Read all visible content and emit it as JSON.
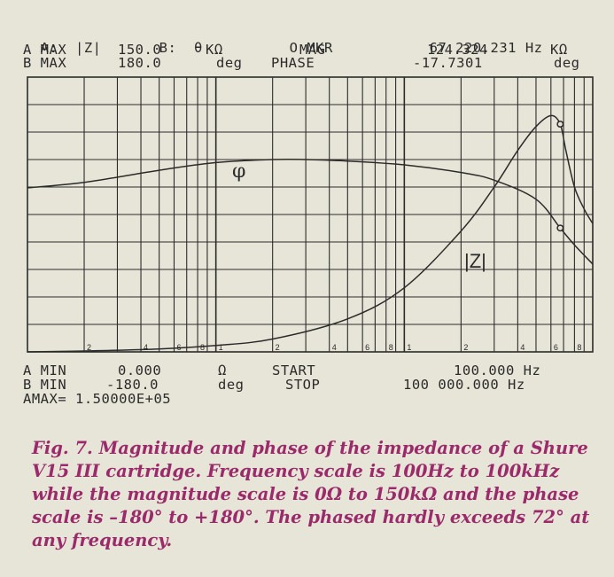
{
  "header": {
    "a_trace": "A:  |Z|",
    "b_trace": "B:  θ",
    "mkr_label": "O MKR",
    "mkr_freq": "67 220.231 Hz",
    "a_max_label": "A MAX",
    "a_max_value": "150.0",
    "a_max_unit": "KΩ",
    "mag_label": "MAG",
    "mag_value": "124.324",
    "mag_unit": "KΩ",
    "b_max_label": "B MAX",
    "b_max_value": "180.0",
    "b_max_unit": "deg",
    "phase_label": "PHASE",
    "phase_value": "-17.7301",
    "phase_unit": "deg"
  },
  "footer": {
    "a_min_label": "A MIN",
    "a_min_value": "0.000",
    "a_min_unit": "Ω",
    "start_label": "START",
    "start_value": "100.000 Hz",
    "b_min_label": "B MIN",
    "b_min_value": "-180.0",
    "b_min_unit": "deg",
    "stop_label": "STOP",
    "stop_value": "100 000.000 Hz",
    "amax": "AMAX= 1.50000E+05"
  },
  "caption": "Fig. 7. Magnitude and phase of the impedance of a Shure V15 III cartridge. Frequency scale is 100Hz to 100kHz while the magnitude scale is 0Ω to 150kΩ and the phase scale is –180° to +180°. The phased hardly exceeds 72° at any frequency.",
  "chart_data": {
    "type": "line",
    "x_scale": "log",
    "xlim": [
      100,
      100000
    ],
    "x_tick_labels": [
      "2",
      "4",
      "6",
      "8",
      "1",
      "2",
      "4",
      "6",
      "8",
      "1",
      "2",
      "4",
      "6",
      "8"
    ],
    "series": [
      {
        "name": "|Z|",
        "axis": "A",
        "unit": "Ω",
        "ylim": [
          0,
          150000
        ],
        "x": [
          100,
          200,
          500,
          1000,
          2000,
          5000,
          10000,
          20000,
          30000,
          40000,
          50000,
          60000,
          67220,
          72000,
          80000,
          90000,
          100000
        ],
        "y": [
          0,
          500,
          1600,
          3500,
          7000,
          18000,
          35000,
          66000,
          90000,
          110000,
          123000,
          129000,
          124324,
          110000,
          90000,
          78000,
          70000
        ]
      },
      {
        "name": "φ",
        "axis": "B",
        "unit": "deg",
        "ylim": [
          -180,
          180
        ],
        "x": [
          100,
          200,
          500,
          1000,
          2000,
          3000,
          5000,
          10000,
          20000,
          30000,
          50000,
          67220,
          80000,
          100000
        ],
        "y": [
          35,
          42,
          58,
          68,
          72,
          72,
          70,
          65,
          55,
          45,
          20,
          -17.7301,
          -40,
          -65
        ]
      }
    ],
    "labels": {
      "phase": "φ",
      "magnitude": "|Z|"
    },
    "markers": [
      {
        "series": "|Z|",
        "x": 67220,
        "y": 124324
      },
      {
        "series": "φ",
        "x": 67220,
        "y": -17.7301
      }
    ],
    "grid": true
  }
}
